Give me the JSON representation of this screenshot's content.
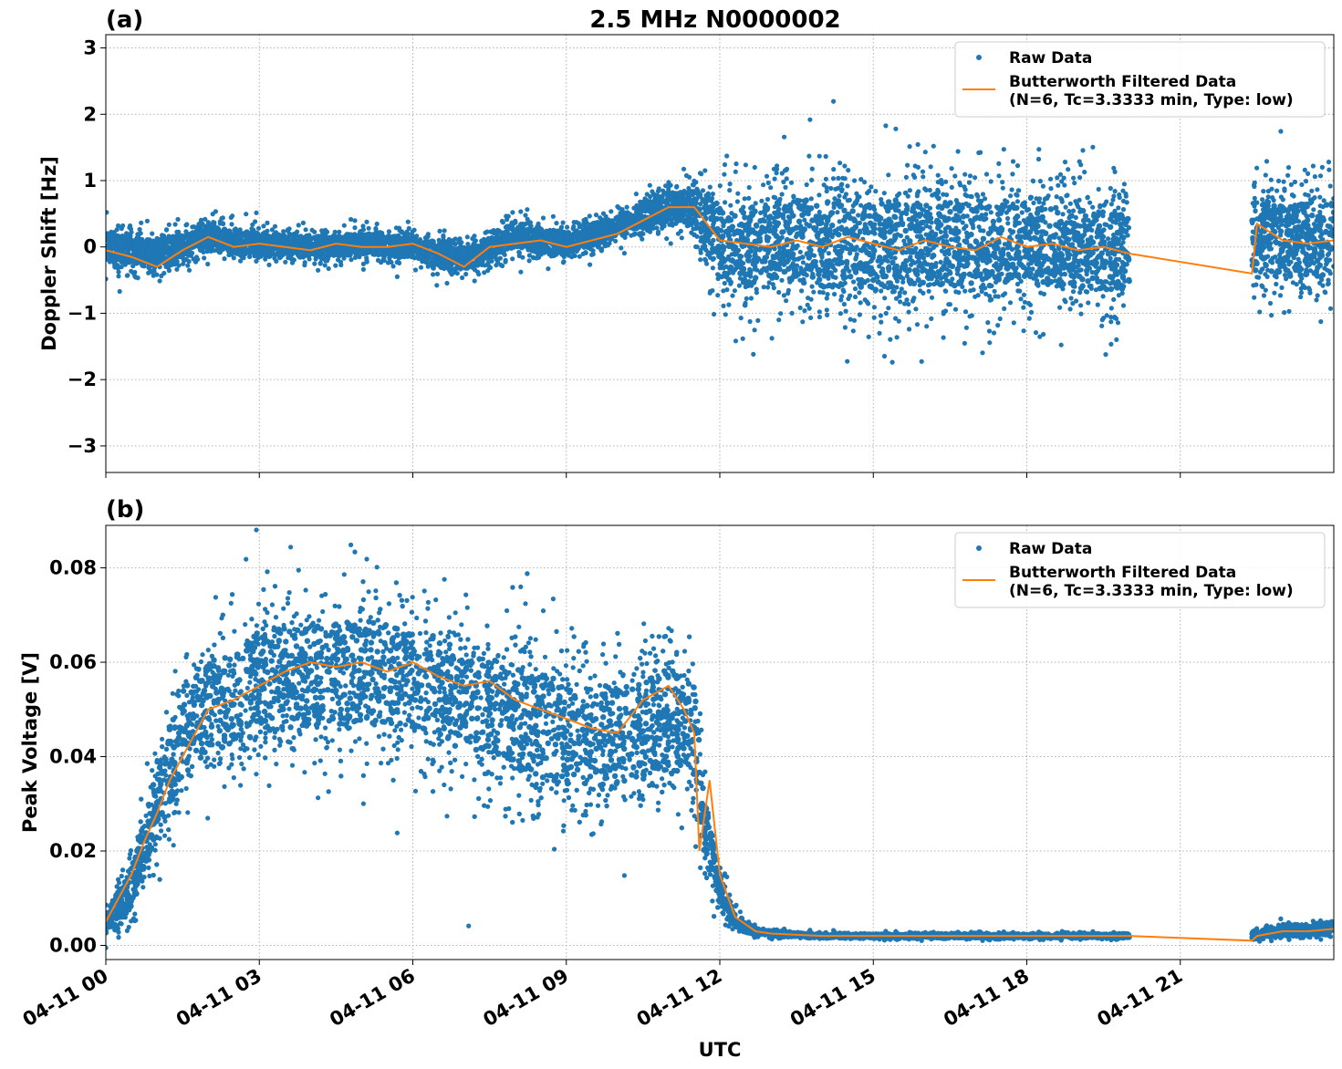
{
  "title": "2.5 MHz N0000002",
  "xlabel": "UTC",
  "colors": {
    "raw": "#1f77b4",
    "filtered": "#ff7f0e",
    "grid": "#b0b0b0"
  },
  "x_ticks": [
    "04-11 00",
    "04-11 03",
    "04-11 06",
    "04-11 09",
    "04-11 12",
    "04-11 15",
    "04-11 18",
    "04-11 21"
  ],
  "legend": {
    "raw_label": "Raw Data",
    "filtered_label_line1": "Butterworth Filtered Data",
    "filtered_label_line2": "(N=6, Tc=3.3333 min, Type: low)"
  },
  "chart_data": [
    {
      "type": "scatter",
      "panel_label": "(a)",
      "ylabel": "Doppler Shift [Hz]",
      "xlim_hours": [
        0,
        24
      ],
      "ylim": [
        -3.4,
        3.2
      ],
      "y_ticks": [
        "3",
        "2",
        "1",
        "0",
        "−1",
        "−2",
        "−3"
      ],
      "y_tick_values": [
        3,
        2,
        1,
        0,
        -1,
        -2,
        -3
      ],
      "grid": true,
      "legend_position": "top-right",
      "series": [
        {
          "name": "Raw Data",
          "kind": "points",
          "envelope": {
            "x_hours": [
              0,
              1,
              2,
              3,
              4,
              5,
              6,
              7,
              8,
              9,
              10,
              11,
              11.5,
              12,
              12.5,
              13,
              14,
              15,
              16,
              17,
              18,
              19,
              20,
              22.3,
              23,
              24
            ],
            "center": [
              0.0,
              -0.1,
              0.15,
              0.05,
              0.0,
              0.05,
              0.0,
              -0.2,
              0.15,
              0.05,
              0.3,
              0.6,
              0.6,
              0.1,
              0.0,
              0.1,
              0.05,
              0.0,
              0.1,
              0.0,
              0.05,
              0.0,
              -0.1,
              0.2,
              0.1,
              0.1
            ],
            "spread": [
              0.35,
              0.3,
              0.3,
              0.25,
              0.25,
              0.25,
              0.25,
              0.3,
              0.25,
              0.25,
              0.25,
              0.35,
              0.4,
              0.9,
              1.0,
              1.0,
              1.1,
              1.1,
              1.1,
              1.0,
              1.0,
              1.0,
              1.0,
              0.9,
              0.9,
              0.9
            ]
          },
          "gaps_hours": [
            [
              20.0,
              22.4
            ]
          ]
        },
        {
          "name": "Butterworth Filtered Data (N=6, Tc=3.3333 min, Type: low)",
          "kind": "line",
          "x_hours": [
            0,
            0.5,
            1,
            1.5,
            2,
            2.5,
            3,
            3.5,
            4,
            4.5,
            5,
            5.5,
            6,
            6.5,
            7,
            7.5,
            8,
            8.5,
            9,
            9.5,
            10,
            10.5,
            11,
            11.5,
            12,
            12.5,
            13,
            13.5,
            14,
            14.5,
            15,
            15.5,
            16,
            16.5,
            17,
            17.5,
            18,
            18.5,
            19,
            19.5,
            20,
            22.4,
            22.5,
            23,
            23.5,
            24
          ],
          "y": [
            -0.05,
            -0.15,
            -0.3,
            -0.05,
            0.15,
            0.0,
            0.05,
            0.0,
            -0.05,
            0.05,
            0.0,
            0.0,
            0.05,
            -0.1,
            -0.3,
            0.0,
            0.05,
            0.1,
            0.0,
            0.1,
            0.2,
            0.4,
            0.6,
            0.6,
            0.1,
            0.05,
            0.0,
            0.1,
            0.0,
            0.15,
            0.05,
            -0.05,
            0.1,
            0.0,
            -0.05,
            0.15,
            0.0,
            0.05,
            -0.05,
            0.0,
            -0.1,
            -0.4,
            0.35,
            0.1,
            0.05,
            0.1
          ]
        }
      ]
    },
    {
      "type": "scatter",
      "panel_label": "(b)",
      "ylabel": "Peak Voltage [V]",
      "xlim_hours": [
        0,
        24
      ],
      "ylim": [
        -0.003,
        0.089
      ],
      "y_ticks": [
        "0.08",
        "0.06",
        "0.04",
        "0.02",
        "0.00"
      ],
      "y_tick_values": [
        0.08,
        0.06,
        0.04,
        0.02,
        0.0
      ],
      "grid": true,
      "legend_position": "top-right",
      "series": [
        {
          "name": "Raw Data",
          "kind": "points",
          "envelope": {
            "x_hours": [
              0,
              0.5,
              1,
              1.5,
              2,
              2.5,
              3,
              4,
              5,
              6,
              7,
              8,
              9,
              10,
              11,
              11.5,
              11.7,
              12,
              12.3,
              12.7,
              13,
              14,
              16,
              18,
              20,
              22.3,
              23,
              23.5,
              24
            ],
            "center": [
              0.005,
              0.012,
              0.03,
              0.045,
              0.05,
              0.052,
              0.056,
              0.057,
              0.058,
              0.057,
              0.052,
              0.048,
              0.045,
              0.044,
              0.048,
              0.045,
              0.025,
              0.012,
              0.005,
              0.003,
              0.0025,
              0.002,
              0.002,
              0.002,
              0.002,
              0.002,
              0.003,
              0.003,
              0.004
            ],
            "spread": [
              0.004,
              0.007,
              0.012,
              0.016,
              0.017,
              0.017,
              0.018,
              0.018,
              0.018,
              0.018,
              0.018,
              0.018,
              0.018,
              0.018,
              0.018,
              0.017,
              0.01,
              0.005,
              0.003,
              0.001,
              0.0008,
              0.0006,
              0.0006,
              0.0006,
              0.0006,
              0.001,
              0.0015,
              0.0015,
              0.0018
            ]
          },
          "gaps_hours": [
            [
              20.0,
              22.4
            ]
          ]
        },
        {
          "name": "Butterworth Filtered Data (N=6, Tc=3.3333 min, Type: low)",
          "kind": "line",
          "x_hours": [
            0,
            0.25,
            0.5,
            0.75,
            1,
            1.25,
            1.5,
            1.75,
            2,
            2.5,
            3,
            3.5,
            4,
            4.5,
            5,
            5.5,
            6,
            6.5,
            7,
            7.5,
            8,
            8.5,
            9,
            9.5,
            10,
            10.5,
            11,
            11.3,
            11.5,
            11.6,
            11.8,
            12,
            12.3,
            12.7,
            13,
            14,
            15,
            16,
            17,
            18,
            19,
            20,
            22.4,
            22.5,
            23,
            23.5,
            24
          ],
          "y": [
            0.005,
            0.01,
            0.015,
            0.022,
            0.028,
            0.035,
            0.04,
            0.045,
            0.05,
            0.052,
            0.055,
            0.058,
            0.06,
            0.059,
            0.06,
            0.058,
            0.06,
            0.057,
            0.055,
            0.056,
            0.052,
            0.05,
            0.048,
            0.046,
            0.045,
            0.052,
            0.055,
            0.05,
            0.045,
            0.02,
            0.035,
            0.015,
            0.006,
            0.003,
            0.0025,
            0.002,
            0.002,
            0.002,
            0.002,
            0.002,
            0.002,
            0.002,
            0.001,
            0.002,
            0.003,
            0.003,
            0.0035
          ]
        }
      ]
    }
  ]
}
